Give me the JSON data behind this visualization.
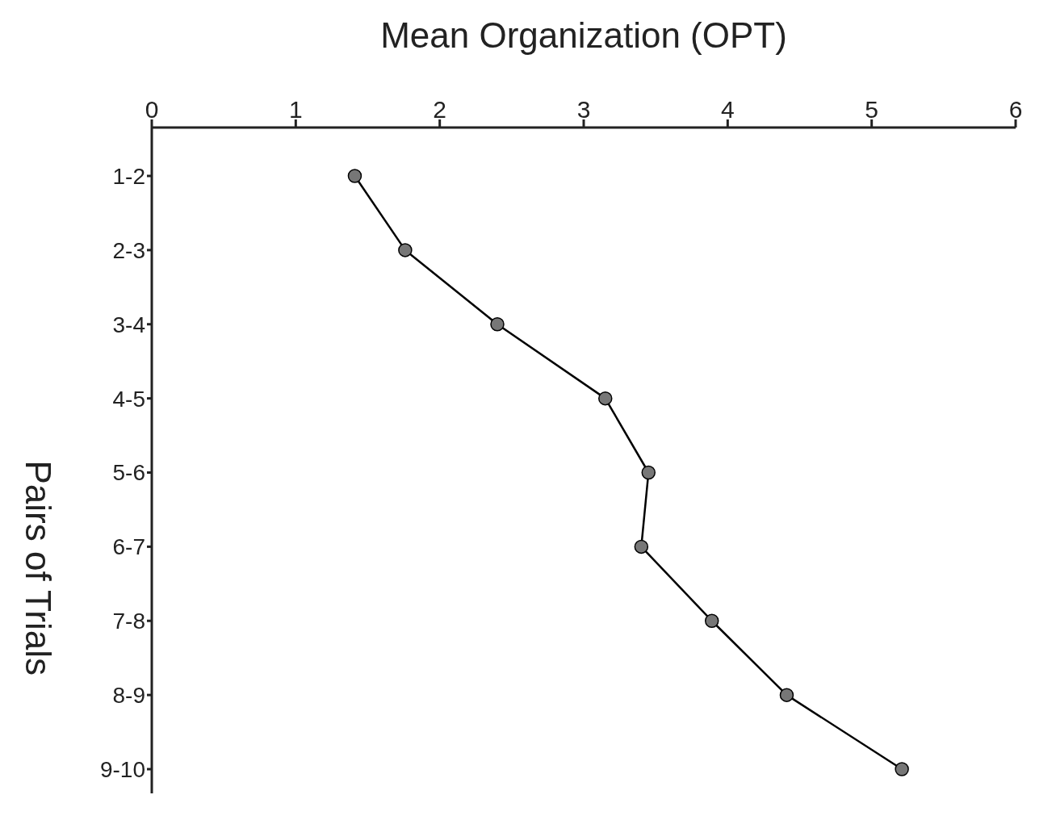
{
  "chart_data": {
    "type": "line",
    "orientation": "horizontal",
    "xlabel": "Mean Organization (OPT)",
    "ylabel": "Pairs of Trials",
    "categories": [
      "1-2",
      "2-3",
      "3-4",
      "4-5",
      "5-6",
      "6-7",
      "7-8",
      "8-9",
      "9-10"
    ],
    "series": [
      {
        "color": "#000000",
        "values": [
          1.41,
          1.76,
          2.4,
          3.15,
          3.45,
          3.4,
          3.89,
          4.41,
          5.21
        ]
      }
    ],
    "xlim": [
      0,
      6
    ],
    "xticks": [
      0,
      1,
      2,
      3,
      4,
      5,
      6
    ],
    "marker": "circle",
    "line_style": "solid",
    "grid": false,
    "legend": false
  }
}
